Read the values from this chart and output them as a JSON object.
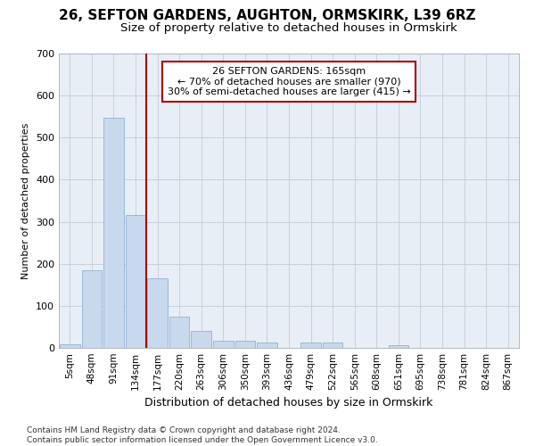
{
  "title1": "26, SEFTON GARDENS, AUGHTON, ORMSKIRK, L39 6RZ",
  "title2": "Size of property relative to detached houses in Ormskirk",
  "xlabel": "Distribution of detached houses by size in Ormskirk",
  "ylabel": "Number of detached properties",
  "footnote": "Contains HM Land Registry data © Crown copyright and database right 2024.\nContains public sector information licensed under the Open Government Licence v3.0.",
  "bar_labels": [
    "5sqm",
    "48sqm",
    "91sqm",
    "134sqm",
    "177sqm",
    "220sqm",
    "263sqm",
    "306sqm",
    "350sqm",
    "393sqm",
    "436sqm",
    "479sqm",
    "522sqm",
    "565sqm",
    "608sqm",
    "651sqm",
    "695sqm",
    "738sqm",
    "781sqm",
    "824sqm",
    "867sqm"
  ],
  "bar_values": [
    9,
    185,
    547,
    316,
    165,
    75,
    40,
    16,
    16,
    12,
    0,
    12,
    12,
    0,
    0,
    6,
    0,
    0,
    0,
    0,
    0
  ],
  "bar_color": "#c8d9ed",
  "bar_edge_color": "#9ab8d8",
  "grid_color": "#c8d0dc",
  "bg_color": "#e8eef5",
  "vline_x_index": 3.5,
  "vline_color": "#aa0000",
  "ylim": [
    0,
    700
  ],
  "yticks": [
    0,
    100,
    200,
    300,
    400,
    500,
    600,
    700
  ],
  "annotation_text": "26 SEFTON GARDENS: 165sqm\n← 70% of detached houses are smaller (970)\n30% of semi-detached houses are larger (415) →",
  "annotation_box_color": "#ffffff",
  "annotation_border_color": "#aa0000",
  "title1_fontsize": 11,
  "title2_fontsize": 9.5,
  "xlabel_fontsize": 9,
  "ylabel_fontsize": 8,
  "tick_fontsize": 8,
  "xtick_fontsize": 7.5,
  "annotation_fontsize": 8,
  "footnote_fontsize": 6.5
}
